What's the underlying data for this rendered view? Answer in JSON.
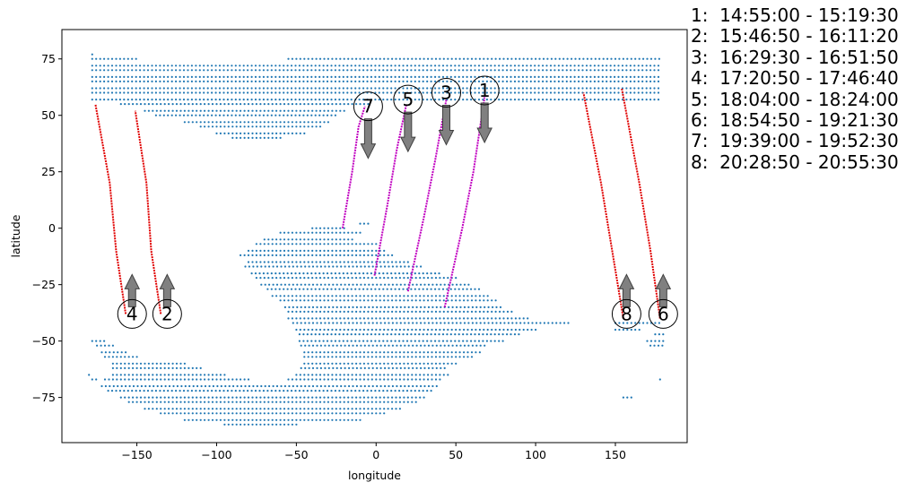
{
  "chart_data": {
    "type": "scatter",
    "title": "",
    "xlabel": "longitude",
    "ylabel": "latitude",
    "xlim": [
      -197,
      195
    ],
    "ylim": [
      -95,
      88
    ],
    "x_ticks": [
      -150,
      -100,
      -50,
      0,
      50,
      100,
      150
    ],
    "y_ticks": [
      -75,
      -50,
      -25,
      0,
      25,
      50,
      75
    ],
    "x_tick_labels": [
      "−150",
      "−100",
      "−50",
      "0",
      "50",
      "100",
      "150"
    ],
    "y_tick_labels": [
      "−75",
      "−50",
      "−25",
      "0",
      "25",
      "50",
      "75"
    ],
    "grid": false,
    "dot_color": "#1f77b4",
    "regions": [
      {
        "lat": 77,
        "lon": [
          -178,
          -178
        ]
      },
      {
        "lat": 75,
        "lon": [
          -178,
          -150
        ]
      },
      {
        "lat": 75,
        "lon": [
          -55,
          178
        ]
      },
      {
        "lat": 72,
        "lon": [
          -178,
          178
        ]
      },
      {
        "lat": 70,
        "lon": [
          -178,
          178
        ]
      },
      {
        "lat": 67,
        "lon": [
          -178,
          178
        ]
      },
      {
        "lat": 65,
        "lon": [
          -178,
          178
        ]
      },
      {
        "lat": 62,
        "lon": [
          -178,
          178
        ]
      },
      {
        "lat": 60,
        "lon": [
          -178,
          178
        ]
      },
      {
        "lat": 57,
        "lon": [
          -178,
          178
        ]
      },
      {
        "lat": 55,
        "lon": [
          -160,
          -5
        ]
      },
      {
        "lat": 52,
        "lon": [
          -145,
          -20
        ]
      },
      {
        "lat": 50,
        "lon": [
          -138,
          -25
        ]
      },
      {
        "lat": 47,
        "lon": [
          -120,
          -30
        ]
      },
      {
        "lat": 45,
        "lon": [
          -110,
          -35
        ]
      },
      {
        "lat": 42,
        "lon": [
          -100,
          -45
        ]
      },
      {
        "lat": 40,
        "lon": [
          -90,
          -60
        ]
      },
      {
        "lat": 2,
        "lon": [
          -10,
          -5
        ]
      },
      {
        "lat": 0,
        "lon": [
          -40,
          -20
        ]
      },
      {
        "lat": -2,
        "lon": [
          -60,
          -10
        ]
      },
      {
        "lat": -5,
        "lon": [
          -70,
          -15
        ]
      },
      {
        "lat": -7,
        "lon": [
          -75,
          0
        ]
      },
      {
        "lat": -10,
        "lon": [
          -80,
          5
        ]
      },
      {
        "lat": -12,
        "lon": [
          -85,
          10
        ]
      },
      {
        "lat": -15,
        "lon": [
          -80,
          20
        ]
      },
      {
        "lat": -17,
        "lon": [
          -82,
          30
        ]
      },
      {
        "lat": -20,
        "lon": [
          -78,
          40
        ]
      },
      {
        "lat": -22,
        "lon": [
          -75,
          50
        ]
      },
      {
        "lat": -25,
        "lon": [
          -72,
          60
        ]
      },
      {
        "lat": -27,
        "lon": [
          -68,
          65
        ]
      },
      {
        "lat": -30,
        "lon": [
          -65,
          70
        ]
      },
      {
        "lat": -32,
        "lon": [
          -60,
          75
        ]
      },
      {
        "lat": -35,
        "lon": [
          -57,
          80
        ]
      },
      {
        "lat": -37,
        "lon": [
          -55,
          85
        ]
      },
      {
        "lat": -40,
        "lon": [
          -55,
          95
        ]
      },
      {
        "lat": -42,
        "lon": [
          -52,
          122
        ]
      },
      {
        "lat": -45,
        "lon": [
          -50,
          100
        ]
      },
      {
        "lat": -47,
        "lon": [
          -48,
          90
        ]
      },
      {
        "lat": -50,
        "lon": [
          -178,
          -170
        ]
      },
      {
        "lat": -50,
        "lon": [
          -48,
          80
        ]
      },
      {
        "lat": -52,
        "lon": [
          -175,
          -165
        ]
      },
      {
        "lat": -52,
        "lon": [
          -47,
          70
        ]
      },
      {
        "lat": -55,
        "lon": [
          -172,
          -155
        ]
      },
      {
        "lat": -55,
        "lon": [
          -45,
          65
        ]
      },
      {
        "lat": -57,
        "lon": [
          -170,
          -150
        ]
      },
      {
        "lat": -57,
        "lon": [
          -45,
          60
        ]
      },
      {
        "lat": -60,
        "lon": [
          -165,
          -120
        ]
      },
      {
        "lat": -60,
        "lon": [
          -45,
          50
        ]
      },
      {
        "lat": -62,
        "lon": [
          -165,
          -110
        ]
      },
      {
        "lat": -62,
        "lon": [
          -47,
          45
        ]
      },
      {
        "lat": -65,
        "lon": [
          -180,
          -178
        ]
      },
      {
        "lat": -65,
        "lon": [
          -165,
          -95
        ]
      },
      {
        "lat": -65,
        "lon": [
          -50,
          45
        ]
      },
      {
        "lat": -67,
        "lon": [
          -178,
          -175
        ]
      },
      {
        "lat": -67,
        "lon": [
          -170,
          -80
        ]
      },
      {
        "lat": -67,
        "lon": [
          -55,
          40
        ]
      },
      {
        "lat": -70,
        "lon": [
          -172,
          40
        ]
      },
      {
        "lat": -72,
        "lon": [
          -168,
          35
        ]
      },
      {
        "lat": -75,
        "lon": [
          -160,
          30
        ]
      },
      {
        "lat": -77,
        "lon": [
          -155,
          25
        ]
      },
      {
        "lat": -80,
        "lon": [
          -145,
          15
        ]
      },
      {
        "lat": -82,
        "lon": [
          -135,
          5
        ]
      },
      {
        "lat": -85,
        "lon": [
          -120,
          -10
        ]
      },
      {
        "lat": -87,
        "lon": [
          -95,
          -50
        ]
      },
      {
        "lat": -75,
        "lon": [
          155,
          160
        ]
      },
      {
        "lat": -67,
        "lon": [
          178,
          180
        ]
      },
      {
        "lat": -52,
        "lon": [
          172,
          180
        ]
      },
      {
        "lat": -50,
        "lon": [
          170,
          180
        ]
      },
      {
        "lat": -47,
        "lon": [
          175,
          180
        ]
      },
      {
        "lat": -45,
        "lon": [
          150,
          165
        ]
      },
      {
        "lat": -42,
        "lon": [
          150,
          178
        ]
      }
    ],
    "series": [
      {
        "label": "1",
        "color": "#c000c0",
        "points": [
          [
            43,
            -35
          ],
          [
            54,
            0
          ],
          [
            61,
            25
          ],
          [
            68,
            58
          ]
        ],
        "marker": {
          "pos": [
            68,
            61
          ],
          "arrow": "down"
        }
      },
      {
        "label": "2",
        "color": "#e00000",
        "points": [
          [
            -135,
            -38
          ],
          [
            -141,
            -10
          ],
          [
            -144,
            20
          ],
          [
            -151,
            52
          ]
        ],
        "marker": {
          "pos": [
            -131,
            -38
          ],
          "arrow": "up"
        }
      },
      {
        "label": "3",
        "color": "#c000c0",
        "points": [
          [
            20,
            -28
          ],
          [
            30,
            5
          ],
          [
            37,
            30
          ],
          [
            44,
            57
          ]
        ],
        "marker": {
          "pos": [
            44,
            60
          ],
          "arrow": "down"
        }
      },
      {
        "label": "4",
        "color": "#e00000",
        "points": [
          [
            -157,
            -38
          ],
          [
            -163,
            -10
          ],
          [
            -167,
            20
          ],
          [
            -176,
            55
          ]
        ],
        "marker": {
          "pos": [
            -153,
            -38
          ],
          "arrow": "up"
        }
      },
      {
        "label": "5",
        "color": "#c000c0",
        "points": [
          [
            -1,
            -21
          ],
          [
            7,
            10
          ],
          [
            13,
            35
          ],
          [
            19,
            55
          ]
        ],
        "marker": {
          "pos": [
            20,
            57
          ],
          "arrow": "down"
        }
      },
      {
        "label": "6",
        "color": "#e00000",
        "points": [
          [
            178,
            -40
          ],
          [
            172,
            -10
          ],
          [
            165,
            20
          ],
          [
            154,
            62
          ]
        ],
        "marker": {
          "pos": [
            180,
            -38
          ],
          "arrow": "up"
        }
      },
      {
        "label": "7",
        "color": "#c000c0",
        "points": [
          [
            -21,
            0
          ],
          [
            -15,
            25
          ],
          [
            -11,
            45
          ],
          [
            -7,
            54
          ]
        ],
        "marker": {
          "pos": [
            -5,
            54
          ],
          "arrow": "down"
        }
      },
      {
        "label": "8",
        "color": "#e00000",
        "points": [
          [
            155,
            -40
          ],
          [
            148,
            -10
          ],
          [
            141,
            20
          ],
          [
            130,
            60
          ]
        ],
        "marker": {
          "pos": [
            157,
            -38
          ],
          "arrow": "up"
        }
      }
    ],
    "annotations": [
      {
        "label": "1",
        "time": "14:55:00 - 15:19:30"
      },
      {
        "label": "2",
        "time": "15:46:50 - 16:11:20"
      },
      {
        "label": "3",
        "time": "16:29:30 - 16:51:50"
      },
      {
        "label": "4",
        "time": "17:20:50 - 17:46:40"
      },
      {
        "label": "5",
        "time": "18:04:00 - 18:24:00"
      },
      {
        "label": "6",
        "time": "18:54:50 - 19:21:30"
      },
      {
        "label": "7",
        "time": "19:39:00 - 19:52:30"
      },
      {
        "label": "8",
        "time": "20:28:50 - 20:55:30"
      }
    ]
  }
}
